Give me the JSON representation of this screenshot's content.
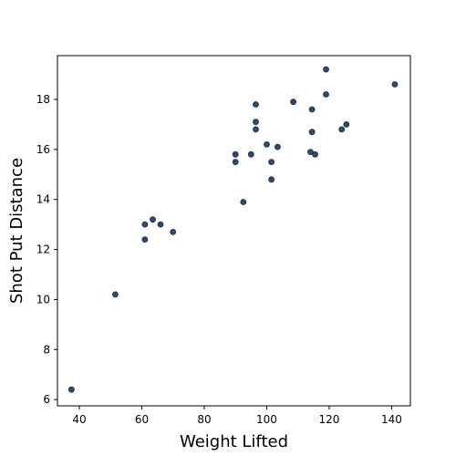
{
  "chart_data": {
    "type": "scatter",
    "title": "",
    "xlabel": "Weight Lifted",
    "ylabel": "Shot Put Distance",
    "xlim": [
      33,
      146
    ],
    "ylim": [
      5.75,
      19.75
    ],
    "xticks": [
      40,
      60,
      80,
      100,
      120,
      140
    ],
    "yticks": [
      6,
      8,
      10,
      12,
      14,
      16,
      18
    ],
    "grid": false,
    "legend": "none",
    "marker_color": "#2e4a6e",
    "marker_edge_color": "#1a2c45",
    "points": [
      {
        "x": 37.5,
        "y": 6.4
      },
      {
        "x": 51.5,
        "y": 10.2
      },
      {
        "x": 61.0,
        "y": 12.4
      },
      {
        "x": 61.0,
        "y": 13.0
      },
      {
        "x": 63.5,
        "y": 13.2
      },
      {
        "x": 66.0,
        "y": 13.0
      },
      {
        "x": 70.0,
        "y": 12.7
      },
      {
        "x": 90.0,
        "y": 15.5
      },
      {
        "x": 90.0,
        "y": 15.8
      },
      {
        "x": 92.5,
        "y": 13.9
      },
      {
        "x": 95.0,
        "y": 15.8
      },
      {
        "x": 96.5,
        "y": 16.8
      },
      {
        "x": 96.5,
        "y": 17.1
      },
      {
        "x": 96.5,
        "y": 17.8
      },
      {
        "x": 100.0,
        "y": 16.2
      },
      {
        "x": 101.5,
        "y": 15.5
      },
      {
        "x": 101.5,
        "y": 14.8
      },
      {
        "x": 103.5,
        "y": 16.1
      },
      {
        "x": 108.5,
        "y": 17.9
      },
      {
        "x": 114.0,
        "y": 15.9
      },
      {
        "x": 114.5,
        "y": 17.6
      },
      {
        "x": 114.5,
        "y": 16.7
      },
      {
        "x": 115.5,
        "y": 15.8
      },
      {
        "x": 119.0,
        "y": 19.2
      },
      {
        "x": 119.0,
        "y": 18.2
      },
      {
        "x": 124.0,
        "y": 16.8
      },
      {
        "x": 125.5,
        "y": 17.0
      },
      {
        "x": 141.0,
        "y": 18.6
      }
    ]
  }
}
